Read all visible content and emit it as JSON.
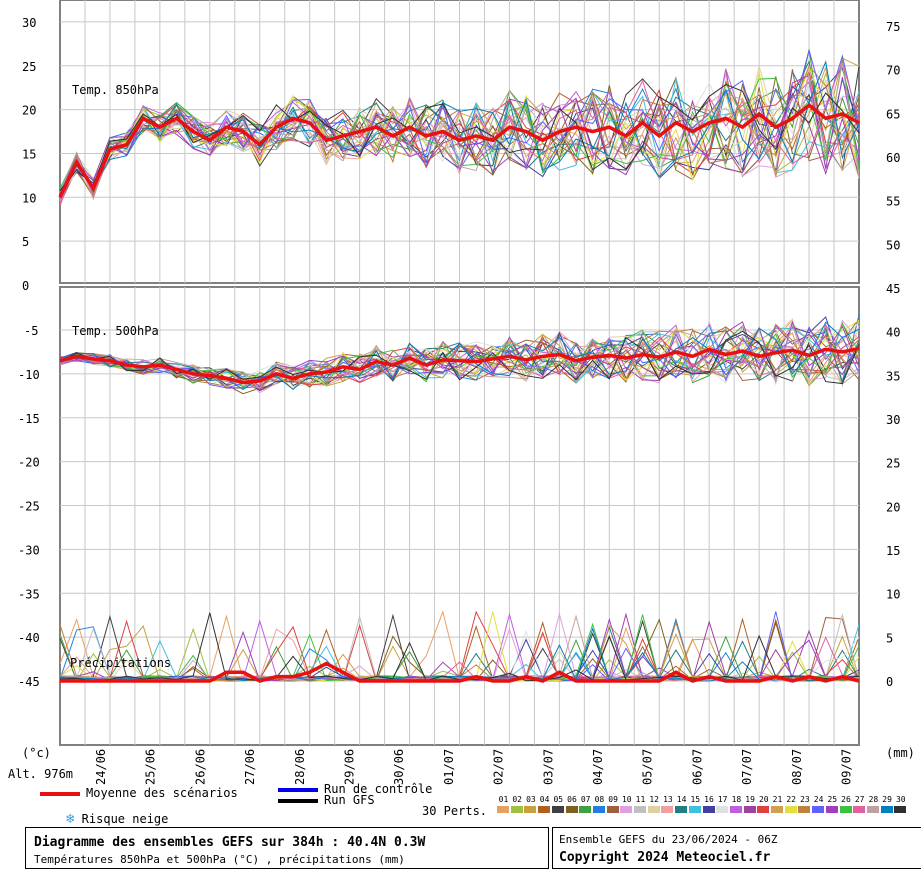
{
  "chart_data": {
    "type": "line",
    "panels": [
      {
        "name": "Temp. 850hPa",
        "unit": "°C",
        "left_ticks": [
          "30",
          "25",
          "20",
          "15",
          "10",
          "5",
          "0"
        ]
      },
      {
        "name": "Temp. 500hPa",
        "unit": "°C",
        "left_ticks": [
          "-5",
          "-10",
          "-15",
          "-20",
          "-25",
          "-30",
          "-35",
          "-40",
          "-45"
        ]
      },
      {
        "name": "Précipitations",
        "unit": "mm",
        "right_ticks": [
          "75",
          "70",
          "65",
          "60",
          "55",
          "50",
          "45",
          "40",
          "35",
          "30",
          "25",
          "20",
          "15",
          "10",
          "5",
          "0"
        ]
      }
    ],
    "left_unit": "(°c)",
    "right_unit": "(mm)",
    "altitude_label": "Alt. 976m",
    "dates": [
      "24/06",
      "25/06",
      "26/06",
      "27/06",
      "28/06",
      "29/06",
      "30/06",
      "01/07",
      "02/07",
      "03/07",
      "04/07",
      "05/07",
      "06/07",
      "07/07",
      "08/07",
      "09/07"
    ],
    "series": [
      {
        "name": "Moyenne des scénarios",
        "color": "#e81010",
        "t850": [
          10,
          14,
          11,
          15.5,
          16,
          19,
          18,
          19,
          17.5,
          16.5,
          18,
          17.5,
          16,
          18,
          19,
          18.5,
          16.5,
          17,
          17.5,
          18,
          17,
          18,
          17,
          17.5,
          16.5,
          17,
          16.5,
          18,
          17.5,
          16.5,
          17.5,
          18,
          17.5,
          18,
          17,
          18.5,
          17,
          18.5,
          17.5,
          18.5,
          19,
          18,
          19.5,
          18,
          19,
          20.5,
          19,
          19.5,
          18.5
        ],
        "t500": [
          -8.5,
          -8,
          -8.3,
          -8.5,
          -9,
          -9.2,
          -9,
          -9.5,
          -10,
          -10.2,
          -10.5,
          -11,
          -10.8,
          -10,
          -10.5,
          -10,
          -9.8,
          -9.2,
          -9.5,
          -8.6,
          -9,
          -8.2,
          -9,
          -8.4,
          -8.5,
          -8.6,
          -8.3,
          -8,
          -8.4,
          -8,
          -7.8,
          -8.5,
          -8.1,
          -7.9,
          -8.2,
          -7.8,
          -8.1,
          -7.5,
          -8,
          -7.2,
          -7.8,
          -7.4,
          -8,
          -7.6,
          -7.3,
          -7.9,
          -7.2,
          -7.5,
          -7.1
        ],
        "precip": [
          0,
          0,
          0,
          0,
          0,
          0,
          0,
          0,
          0,
          0,
          1,
          1,
          0,
          0.5,
          0.5,
          1,
          2,
          1,
          0,
          0,
          0,
          0,
          0,
          0,
          0,
          0.5,
          0,
          0,
          0.5,
          0,
          1,
          0,
          0,
          0,
          0,
          0,
          0,
          1,
          0,
          0.5,
          0,
          0,
          0,
          0.5,
          0,
          0.5,
          0,
          0.5,
          0
        ]
      },
      {
        "name": "Run de contrôle",
        "color": "#0000ee"
      },
      {
        "name": "Run GFS",
        "color": "#000000"
      }
    ],
    "legend_right": "30 Perts.",
    "legend_snow": "Risque neige",
    "pert_numbers": [
      "01",
      "02",
      "03",
      "04",
      "05",
      "06",
      "07",
      "08",
      "09",
      "10",
      "11",
      "12",
      "13",
      "14",
      "15",
      "16",
      "17",
      "18",
      "19",
      "20",
      "21",
      "22",
      "23",
      "24",
      "25",
      "26",
      "27",
      "28",
      "29",
      "30"
    ],
    "pert_colors": [
      "#e8a060",
      "#a0c040",
      "#c8a040",
      "#b06020",
      "#404040",
      "#806020",
      "#40a040",
      "#2080e0",
      "#a06040",
      "#e0a0e0",
      "#c0c0c0",
      "#e0d0a0",
      "#f0a0a0",
      "#208080",
      "#40c0e0",
      "#4040a0",
      "#e0e0e0",
      "#c060e0",
      "#a040a0",
      "#e04040",
      "#d0a050",
      "#e0e040",
      "#c08040",
      "#6060ff",
      "#a040c0",
      "#40c040",
      "#e060a0",
      "#c0a0a0",
      "#0080c0",
      "#303030"
    ]
  },
  "info": {
    "title": "Diagramme des ensembles GEFS sur 384h : 40.4N 0.3W",
    "subtitle": "Températures 850hPa et 500hPa (°C) , précipitations (mm)",
    "run": "Ensemble GEFS du 23/06/2024 - 06Z",
    "copyright": "Copyright 2024 Meteociel.fr"
  }
}
